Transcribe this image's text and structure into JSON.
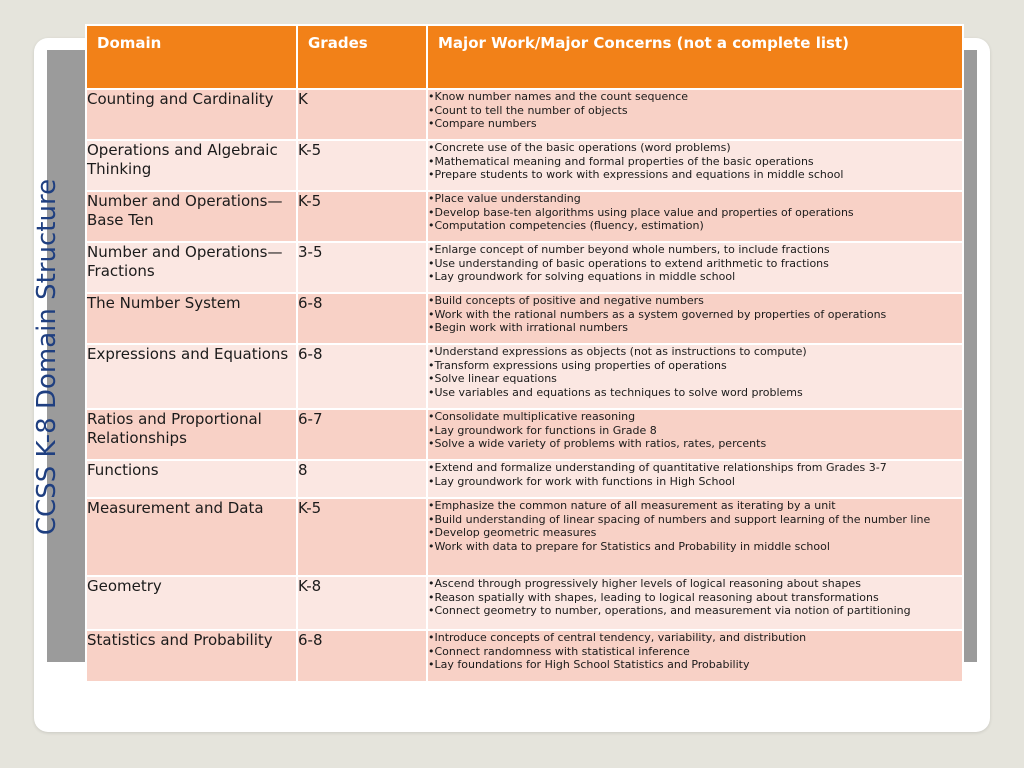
{
  "slide": {
    "title": "CCSS K-8 Domain Structure"
  },
  "table": {
    "headers": [
      "Domain",
      "Grades",
      "Major Work/Major Concerns (not a complete list)"
    ],
    "rows": [
      {
        "domain": "Counting and Cardinality",
        "grades": "K",
        "concerns": [
          "Know number names and the count sequence",
          "Count to tell the number of objects",
          "Compare numbers"
        ]
      },
      {
        "domain": "Operations and Algebraic Thinking",
        "grades": "K-5",
        "concerns": [
          "Concrete use of the basic operations (word problems)",
          "Mathematical meaning and formal properties of the basic operations",
          "Prepare students to work with expressions and equations in middle school"
        ]
      },
      {
        "domain": "Number and Operations—Base Ten",
        "grades": "K-5",
        "concerns": [
          "Place value understanding",
          "Develop base-ten algorithms using place value and properties of operations",
          "Computation competencies (fluency, estimation)"
        ]
      },
      {
        "domain": "Number and Operations—Fractions",
        "grades": "3-5",
        "concerns": [
          "Enlarge concept of number beyond whole numbers, to include fractions",
          "Use understanding of basic operations to extend arithmetic to fractions",
          "Lay groundwork for solving equations in middle school"
        ]
      },
      {
        "domain": "The Number System",
        "grades": "6-8",
        "concerns": [
          "Build concepts of positive and negative numbers",
          "Work with the rational numbers as a system governed by properties of operations",
          "Begin work with irrational numbers"
        ]
      },
      {
        "domain": "Expressions and Equations",
        "grades": "6-8",
        "concerns": [
          "Understand expressions as objects (not as instructions to compute)",
          "Transform expressions using properties of operations",
          "Solve linear equations",
          "Use variables and equations as techniques to solve word problems"
        ]
      },
      {
        "domain": "Ratios and Proportional Relationships",
        "grades": "6-7",
        "concerns": [
          "Consolidate multiplicative reasoning",
          "Lay groundwork for functions in Grade 8",
          "Solve a wide variety of problems with ratios, rates, percents"
        ]
      },
      {
        "domain": "Functions",
        "grades": "8",
        "concerns": [
          "Extend and formalize understanding of quantitative relationships from Grades 3-7",
          "Lay groundwork for work with functions in High School"
        ]
      },
      {
        "domain": "Measurement and Data",
        "grades": "K-5",
        "concerns": [
          "Emphasize the common nature of all measurement as iterating by a unit",
          "Build understanding of linear spacing of numbers and support learning of the number line",
          "Develop geometric measures",
          "Work with data to prepare for Statistics and Probability in middle school"
        ]
      },
      {
        "domain": "Geometry",
        "grades": "K-8",
        "concerns": [
          "Ascend through progressively higher levels of logical reasoning about shapes",
          "Reason spatially with shapes, leading to logical reasoning about transformations",
          "Connect geometry to number, operations, and measurement via notion of partitioning"
        ]
      },
      {
        "domain": "Statistics and Probability",
        "grades": "6-8",
        "concerns": [
          "Introduce concepts of central tendency, variability, and distribution",
          "Connect randomness with statistical inference",
          "Lay foundations for High School Statistics and Probability"
        ]
      }
    ]
  },
  "colors": {
    "header_bg": "#f28118",
    "row_dark": "#f8d1c6",
    "row_light": "#fbe7e2",
    "title_color": "#1f3f80",
    "side_bar": "#9b9b9b"
  }
}
